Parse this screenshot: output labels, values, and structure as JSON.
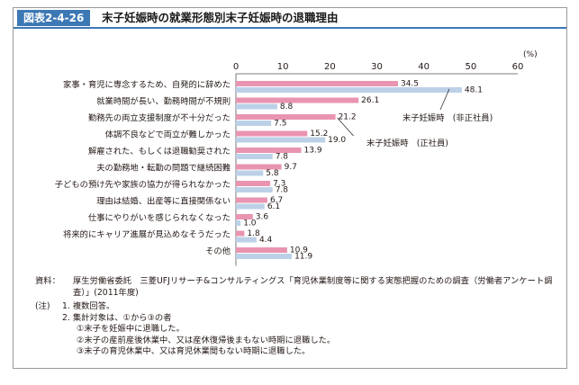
{
  "header": {
    "figure_label": "図表2-4-26",
    "title": "末子妊娠時の就業形態別末子妊娠時の退職理由"
  },
  "chart_data": {
    "type": "bar",
    "orientation": "horizontal",
    "unit_label": "(%)",
    "xlim": [
      0,
      60
    ],
    "ticks": [
      0,
      10,
      20,
      30,
      40,
      50,
      60
    ],
    "categories": [
      "家事・育児に専念するため、自発的に辞めた",
      "就業時間が長い、勤務時間が不規則",
      "勤務先の両立支援制度が不十分だった",
      "体調不良などで両立が難しかった",
      "解雇された、もしくは退職勧奨された",
      "夫の勤務地・転勤の問題で継続困難",
      "子どもの預け先や家族の協力が得られなかった",
      "理由は結婚、出産等に直接関係ない",
      "仕事にやりがいを感じられなくなった",
      "将来的にキャリア進展が見込めなそうだった",
      "その他"
    ],
    "series": [
      {
        "name": "末子妊娠時（正社員）",
        "color": "#e994b0",
        "values": [
          34.5,
          26.1,
          21.2,
          15.2,
          13.9,
          9.7,
          7.3,
          6.7,
          3.6,
          1.8,
          10.9
        ]
      },
      {
        "name": "末子妊娠時（非正社員）",
        "color": "#bcd1e8",
        "values": [
          48.1,
          8.8,
          7.5,
          19.0,
          7.8,
          5.8,
          7.8,
          6.1,
          1.0,
          4.4,
          11.9
        ]
      }
    ],
    "value_labels": [
      [
        "34.5",
        "26.1",
        "21.2",
        "15.2",
        "13.9",
        "9.7",
        "7.3",
        "6.7",
        "3.6",
        "1.8",
        "10.9"
      ],
      [
        "48.1",
        "8.8",
        "7.5",
        "19.0",
        "7.8",
        "5.8",
        "7.8",
        "6.1",
        "1.0",
        "4.4",
        "11.9"
      ]
    ],
    "annotation_labels": [
      "末子妊娠時　(非正社員)",
      "末子妊娠時　(正社員)"
    ]
  },
  "notes": {
    "source_key": "資料：",
    "source_text": "厚生労働省委託　三菱UFJリサーチ&コンサルティングス「育児休業制度等に関する実態把握のための調査（労働者アンケート調査）」(2011年度)",
    "note_key": "(注)",
    "items": [
      "1.  複数回答。",
      "2.  集計対象は、①から③の者",
      "①末子を妊娠中に退職した。",
      "②末子の産前産後休業中、又は産休復帰後まもない時期に退職した。",
      "③末子の育児休業中、又は育児休業間もない時期に退職した。"
    ]
  }
}
